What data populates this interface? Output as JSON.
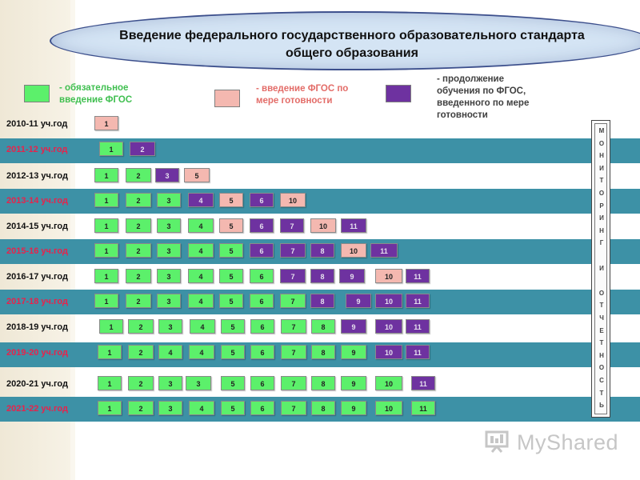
{
  "title": {
    "line1": "Введение федерального государственного образовательного стандарта",
    "line2": "общего образования"
  },
  "legend": [
    {
      "kind": "g",
      "label_line1": "- обязательное",
      "label_line2": "введение ФГОС",
      "label_color": "#3fbf4f"
    },
    {
      "kind": "p",
      "label_line1": "- введение ФГОС по",
      "label_line2": "мере готовности",
      "label_color": "#e36c68"
    },
    {
      "kind": "v",
      "label_line1": "- продолжение",
      "label_line2": "обучения по ФГОС,",
      "label_line3": "введенного по мере",
      "label_line4": "готовности",
      "label_color": "#404040"
    }
  ],
  "colors": {
    "mandatory": "#5cf06b",
    "optional": "#f4b8b0",
    "continued": "#6e32a0",
    "band": "#3d91a6",
    "year_on_band": "#e8224b"
  },
  "rows": [
    {
      "year": "2010-11 уч.год",
      "banded": false,
      "boxes": [
        {
          "t": "1",
          "k": "p"
        }
      ]
    },
    {
      "year": "2011-12 уч.год",
      "banded": true,
      "boxes": [
        {
          "t": "1",
          "k": "g"
        },
        {
          "t": "2",
          "k": "v"
        }
      ]
    },
    {
      "year": "2012-13 уч.год",
      "banded": false,
      "boxes": [
        {
          "t": "1",
          "k": "g"
        },
        {
          "t": "2",
          "k": "g"
        },
        {
          "t": "3",
          "k": "v"
        },
        {
          "t": "5",
          "k": "p"
        }
      ]
    },
    {
      "year": "2013-14 уч.год",
      "banded": true,
      "boxes": [
        {
          "t": "1",
          "k": "g"
        },
        {
          "t": "2",
          "k": "g"
        },
        {
          "t": "3",
          "k": "g"
        },
        {
          "t": "4",
          "k": "v"
        },
        {
          "t": "5",
          "k": "p"
        },
        {
          "t": "6",
          "k": "v"
        },
        {
          "t": "10",
          "k": "p"
        }
      ]
    },
    {
      "year": "2014-15 уч.год",
      "banded": false,
      "boxes": [
        {
          "t": "1",
          "k": "g"
        },
        {
          "t": "2",
          "k": "g"
        },
        {
          "t": "3",
          "k": "g"
        },
        {
          "t": "4",
          "k": "g"
        },
        {
          "t": "5",
          "k": "p"
        },
        {
          "t": "6",
          "k": "v"
        },
        {
          "t": "7",
          "k": "v"
        },
        {
          "t": "10",
          "k": "p"
        },
        {
          "t": "11",
          "k": "v"
        }
      ]
    },
    {
      "year": "2015-16 уч.год",
      "banded": true,
      "boxes": [
        {
          "t": "1",
          "k": "g"
        },
        {
          "t": "2",
          "k": "g"
        },
        {
          "t": "3",
          "k": "g"
        },
        {
          "t": "4",
          "k": "g"
        },
        {
          "t": "5",
          "k": "g"
        },
        {
          "t": "6",
          "k": "v"
        },
        {
          "t": "7",
          "k": "v"
        },
        {
          "t": "8",
          "k": "v"
        },
        {
          "t": "10",
          "k": "p"
        },
        {
          "t": "11",
          "k": "v"
        }
      ]
    },
    {
      "year": "2016-17 уч.год",
      "banded": false,
      "boxes": [
        {
          "t": "1",
          "k": "g"
        },
        {
          "t": "2",
          "k": "g"
        },
        {
          "t": "3",
          "k": "g"
        },
        {
          "t": "4",
          "k": "g"
        },
        {
          "t": "5",
          "k": "g"
        },
        {
          "t": "6",
          "k": "g"
        },
        {
          "t": "7",
          "k": "v"
        },
        {
          "t": "8",
          "k": "v"
        },
        {
          "t": "9",
          "k": "v"
        },
        {
          "t": "10",
          "k": "p"
        },
        {
          "t": "11",
          "k": "v"
        }
      ]
    },
    {
      "year": "2017-18 уч.год",
      "banded": true,
      "boxes": [
        {
          "t": "1",
          "k": "g"
        },
        {
          "t": "2",
          "k": "g"
        },
        {
          "t": "3",
          "k": "g"
        },
        {
          "t": "4",
          "k": "g"
        },
        {
          "t": "5",
          "k": "g"
        },
        {
          "t": "6",
          "k": "g"
        },
        {
          "t": "7",
          "k": "g"
        },
        {
          "t": "8",
          "k": "v"
        },
        {
          "t": "9",
          "k": "v"
        },
        {
          "t": "10",
          "k": "v"
        },
        {
          "t": "11",
          "k": "v"
        }
      ]
    },
    {
      "year": "2018-19 уч.год",
      "banded": false,
      "boxes": [
        {
          "t": "1",
          "k": "g"
        },
        {
          "t": "2",
          "k": "g"
        },
        {
          "t": "3",
          "k": "g"
        },
        {
          "t": "4",
          "k": "g"
        },
        {
          "t": "5",
          "k": "g"
        },
        {
          "t": "6",
          "k": "g"
        },
        {
          "t": "7",
          "k": "g"
        },
        {
          "t": "8",
          "k": "g"
        },
        {
          "t": "9",
          "k": "v"
        },
        {
          "t": "10",
          "k": "v"
        },
        {
          "t": "11",
          "k": "v"
        }
      ]
    },
    {
      "year": "2019-20 уч.год",
      "banded": true,
      "boxes": [
        {
          "t": "1",
          "k": "g"
        },
        {
          "t": "2",
          "k": "g"
        },
        {
          "t": "4",
          "k": "g"
        },
        {
          "t": "4",
          "k": "g"
        },
        {
          "t": "5",
          "k": "g"
        },
        {
          "t": "6",
          "k": "g"
        },
        {
          "t": "7",
          "k": "g"
        },
        {
          "t": "8",
          "k": "g"
        },
        {
          "t": "9",
          "k": "g"
        },
        {
          "t": "10",
          "k": "v"
        },
        {
          "t": "11",
          "k": "v"
        }
      ]
    },
    {
      "year": "2020-21 уч.год",
      "banded": false,
      "boxes": [
        {
          "t": "1",
          "k": "g"
        },
        {
          "t": "2",
          "k": "g"
        },
        {
          "t": "3",
          "k": "g"
        },
        {
          "t": "3",
          "k": "g"
        },
        {
          "t": "5",
          "k": "g"
        },
        {
          "t": "6",
          "k": "g"
        },
        {
          "t": "7",
          "k": "g"
        },
        {
          "t": "8",
          "k": "g"
        },
        {
          "t": "9",
          "k": "g"
        },
        {
          "t": "10",
          "k": "g"
        },
        {
          "t": "11",
          "k": "v"
        }
      ]
    },
    {
      "year": "2021-22 уч.год",
      "banded": true,
      "boxes": [
        {
          "t": "1",
          "k": "g"
        },
        {
          "t": "2",
          "k": "g"
        },
        {
          "t": "3",
          "k": "g"
        },
        {
          "t": "4",
          "k": "g"
        },
        {
          "t": "5",
          "k": "g"
        },
        {
          "t": "6",
          "k": "g"
        },
        {
          "t": "7",
          "k": "g"
        },
        {
          "t": "8",
          "k": "g"
        },
        {
          "t": "9",
          "k": "g"
        },
        {
          "t": "10",
          "k": "g"
        },
        {
          "t": "11",
          "k": "g"
        }
      ]
    }
  ],
  "monitoring_letters": [
    "М",
    "О",
    "Н",
    "И",
    "Т",
    "О",
    "Р",
    "И",
    "Н",
    "Г",
    "",
    "И",
    "",
    "О",
    "Т",
    "Ч",
    "Е",
    "Т",
    "Н",
    "О",
    "С",
    "Т",
    "Ь"
  ],
  "watermark": {
    "text": "MyShared",
    "icon": "presentation-board-icon"
  }
}
